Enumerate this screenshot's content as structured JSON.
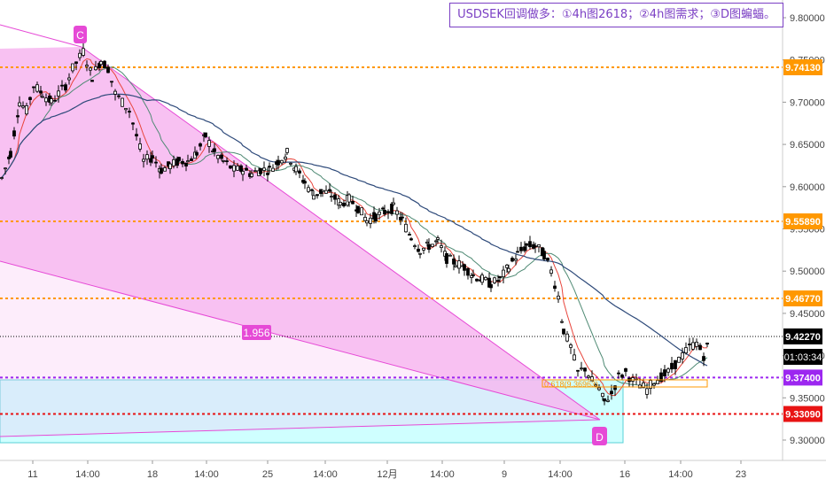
{
  "title": "USDSEK回调做多：①4h图2618；②4h图需求；③D图蝙蝠。",
  "countdown": "01:03:34",
  "colors": {
    "up": "#ffffff",
    "down": "#000000",
    "pattern_fill": "#f7b6f0",
    "pattern_line": "#e64ad6",
    "demand_zone": "#cfffff",
    "demand_border": "#58d1d7",
    "orange_level": "#ff9800",
    "purple_level": "#9c27f0",
    "red_level": "#e81313",
    "ma_fast": "#e8453c",
    "ma_mid": "#4f8a74",
    "ma_slow": "#2e4a7a"
  },
  "chart_data": {
    "type": "candlestick",
    "symbol": "USDSEK",
    "timeframe": "4h",
    "ylim": [
      9.28,
      9.82
    ],
    "y_ticks": [
      "9.80000",
      "9.75000",
      "9.70000",
      "9.65000",
      "9.60000",
      "9.55000",
      "9.50000",
      "9.45000",
      "9.40000",
      "9.35000",
      "9.30000"
    ],
    "x_ticks": [
      "11",
      "14:00",
      "18",
      "14:00",
      "25",
      "14:00",
      "12月",
      "14:00",
      "9",
      "14:00",
      "16",
      "14:00",
      "23"
    ],
    "levels": [
      {
        "label": "9.74130",
        "value": 9.7413,
        "style": "orange"
      },
      {
        "label": "9.55890",
        "value": 9.5589,
        "style": "orange"
      },
      {
        "label": "9.46770",
        "value": 9.4677,
        "style": "orange"
      },
      {
        "label": "9.42270",
        "value": 9.4227,
        "style": "current"
      },
      {
        "label": "9.37400",
        "value": 9.374,
        "style": "purple"
      },
      {
        "label": "9.33090",
        "value": 9.3309,
        "style": "red"
      }
    ],
    "pattern_points": [
      {
        "label": "C",
        "value": 9.765
      },
      {
        "label": "1.956"
      },
      {
        "label": "D",
        "value": 9.326
      }
    ],
    "fib_annotation": "0.618(9.36963)",
    "demand_zone": [
      9.3,
      9.375
    ]
  }
}
